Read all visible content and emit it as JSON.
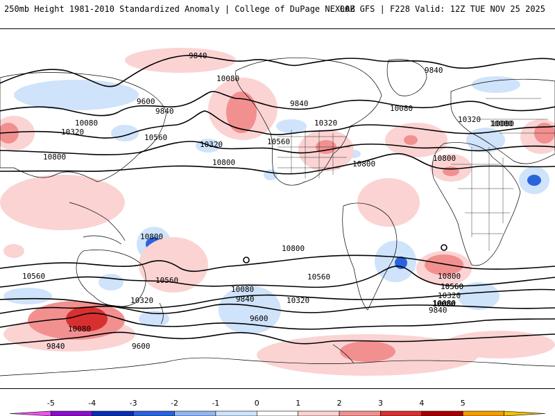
{
  "header": {
    "title": "250mb Height 1981-2010 Standardized Anomaly | College of DuPage NEXLAB",
    "run_info": "00Z GFS | F228 Valid: 12Z TUE NOV 25 2025"
  },
  "map": {
    "contour_labels": [
      "9840",
      "10080",
      "9600",
      "9840",
      "10080",
      "10320",
      "10560",
      "10320",
      "10800",
      "10800",
      "9840",
      "10080",
      "10320",
      "10560",
      "10080",
      "10800",
      "10800",
      "10320",
      "10080",
      "9840",
      "10800",
      "10800",
      "10560",
      "10560",
      "10320",
      "10080",
      "9840",
      "10560",
      "10080",
      "9600",
      "9600",
      "10320",
      "9840",
      "10080",
      "9840",
      "10560",
      "10800",
      "10560",
      "10320",
      "10080"
    ]
  },
  "colorbar": {
    "ticks": [
      "-5",
      "-4",
      "-3",
      "-2",
      "-1",
      "0",
      "1",
      "2",
      "3",
      "4",
      "5"
    ],
    "colors": [
      "#ea55ea",
      "#8a10c8",
      "#0a2eb0",
      "#2b63dd",
      "#8fb7f2",
      "#cfe3fb",
      "#ffffff",
      "#fbd3d3",
      "#f29090",
      "#d83030",
      "#a80000",
      "#f29c00",
      "#f2c000"
    ]
  }
}
